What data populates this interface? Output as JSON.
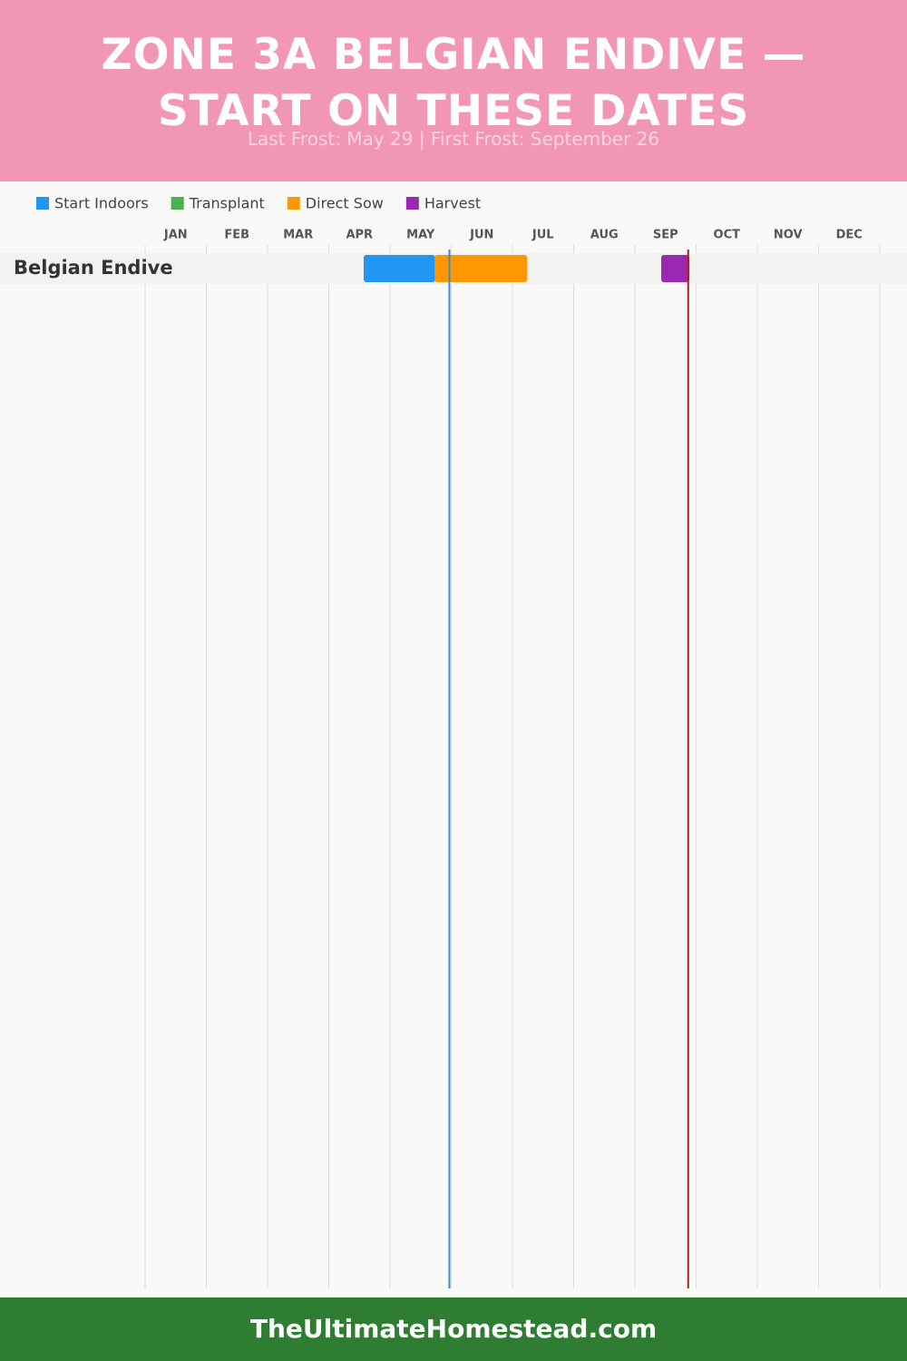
{
  "chart_data": {
    "type": "gantt",
    "title": "ZONE 3A BELGIAN ENDIVE — START ON THESE DATES",
    "subtitle": "Last Frost: May 29 | First Frost: September 26",
    "categories": [
      "JAN",
      "FEB",
      "MAR",
      "APR",
      "MAY",
      "JUN",
      "JUL",
      "AUG",
      "SEP",
      "OCT",
      "NOV",
      "DEC"
    ],
    "xlim": [
      0,
      12
    ],
    "xticks": [
      0,
      1,
      2,
      3,
      4,
      5,
      6,
      7,
      8,
      9,
      10,
      11,
      12
    ],
    "grid": true,
    "rows": [
      "Belgian Endive"
    ],
    "series": [
      {
        "name": "Start Indoors",
        "color": "#2196f3",
        "bars": [
          [
            3.57,
            4.74
          ]
        ]
      },
      {
        "name": "Transplant",
        "color": "#4caf50",
        "bars": []
      },
      {
        "name": "Direct Sow",
        "color": "#ff9800",
        "bars": [
          [
            4.73,
            6.24
          ]
        ]
      },
      {
        "name": "Harvest",
        "color": "#9c27b0",
        "bars": [
          [
            8.43,
            8.89
          ]
        ]
      }
    ],
    "frost_lines": [
      {
        "value": 4.97,
        "color": "#2f8fd0"
      },
      {
        "value": 8.87,
        "color": "#b01c1c"
      }
    ]
  },
  "footer": "TheUltimateHomestead.com"
}
